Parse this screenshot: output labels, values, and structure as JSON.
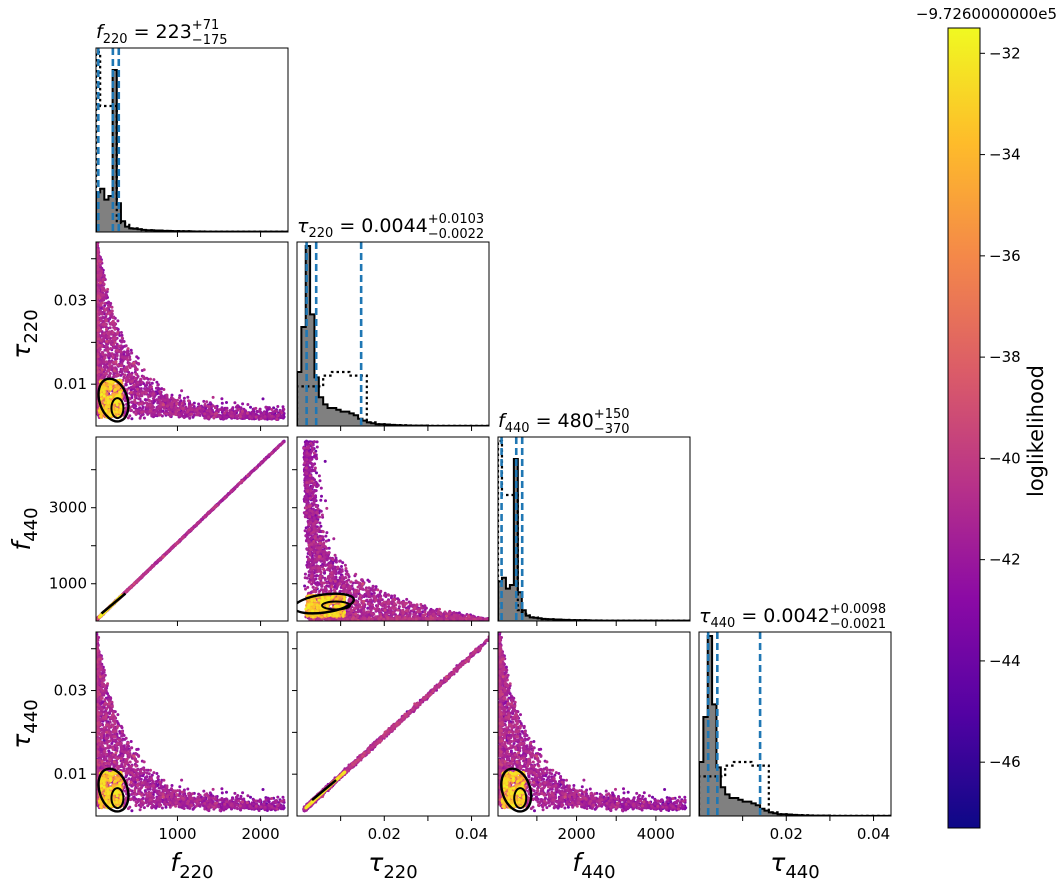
{
  "chart_data": {
    "type": "scatter",
    "title": "",
    "parameters": [
      "f_220",
      "tau_220",
      "f_440",
      "tau_440"
    ],
    "axis_labels": {
      "f_220": {
        "base": "f",
        "sub": "220"
      },
      "tau_220": {
        "base": "τ",
        "sub": "220"
      },
      "f_440": {
        "base": "f",
        "sub": "440"
      },
      "tau_440": {
        "base": "τ",
        "sub": "440"
      }
    },
    "ranges": {
      "f_220": [
        20,
        2330
      ],
      "tau_220": [
        0.0,
        0.044
      ],
      "f_440": [
        20,
        4860
      ],
      "tau_440": [
        0.0,
        0.044
      ]
    },
    "ticks": {
      "f_220": [
        {
          "v": 1000,
          "label": "1000"
        },
        {
          "v": 2000,
          "label": "2000"
        }
      ],
      "tau_220": [
        {
          "v": 0.01,
          "label": "0.01"
        },
        {
          "v": 0.02,
          "label": "0.02"
        },
        {
          "v": 0.03,
          "label": "0.03"
        },
        {
          "v": 0.04,
          "label": "0.04"
        }
      ],
      "f_440": [
        {
          "v": 1000,
          "label": "1000"
        },
        {
          "v": 2000,
          "label": "2000"
        },
        {
          "v": 3000,
          "label": "3000"
        },
        {
          "v": 4000,
          "label": "4000"
        }
      ],
      "tau_440": [
        {
          "v": 0.01,
          "label": "0.01"
        },
        {
          "v": 0.02,
          "label": "0.02"
        },
        {
          "v": 0.03,
          "label": "0.03"
        },
        {
          "v": 0.04,
          "label": "0.04"
        }
      ]
    },
    "bottom_ticks": {
      "f_220": [
        "1000",
        "2000"
      ],
      "tau_220": [
        "0.02",
        "0.04"
      ],
      "f_440": [
        "2000",
        "4000"
      ],
      "tau_440": [
        "0.02",
        "0.04"
      ]
    },
    "left_ticks": {
      "tau_220": [
        "0.01",
        "0.03"
      ],
      "f_440": [
        "1000",
        "3000"
      ],
      "tau_440": [
        "0.01",
        "0.03"
      ]
    },
    "titles": {
      "f_220": {
        "median": "223",
        "plus": "+71",
        "minus": "−175"
      },
      "tau_220": {
        "median": "0.0044",
        "plus": "+0.0103",
        "minus": "−0.0022"
      },
      "f_440": {
        "median": "480",
        "plus": "+150",
        "minus": "−370"
      },
      "tau_440": {
        "median": "0.0042",
        "plus": "+0.0098",
        "minus": "−0.0021"
      }
    },
    "quantiles": {
      "f_220": [
        48,
        223,
        294
      ],
      "tau_220": [
        0.0022,
        0.0044,
        0.0147
      ],
      "f_440": [
        110,
        480,
        630
      ],
      "tau_440": [
        0.0021,
        0.0042,
        0.014
      ]
    },
    "histograms": {
      "f_220": {
        "edges_from": 20,
        "bin_width": 50,
        "posterior": [
          0.22,
          0.24,
          0.18,
          0.2,
          0.9,
          0.16,
          0.06,
          0.03,
          0.02,
          0.018,
          0.015,
          0.012,
          0.01,
          0.01,
          0.008,
          0.008,
          0.006,
          0.006,
          0.005,
          0.005,
          0.004,
          0.004,
          0.004,
          0.003,
          0.003,
          0.003,
          0.002,
          0.002,
          0.002,
          0.002,
          0.002,
          0.002,
          0.002,
          0.002,
          0.002,
          0.002,
          0.002,
          0.002,
          0.002,
          0.002,
          0.002,
          0.002,
          0.002,
          0.002,
          0.002,
          0.002
        ],
        "prior": [
          1.0,
          0.7,
          0.7,
          0.7,
          0.7,
          0.06,
          0.05,
          0.04,
          0.02,
          0.02,
          0.015,
          0.01,
          0.01,
          0.01,
          0.008,
          0.008,
          0.006,
          0.006,
          0.005,
          0.005,
          0.004,
          0.004,
          0.004,
          0.003,
          0.003,
          0.003,
          0.002,
          0.002,
          0.002,
          0.002,
          0.002,
          0.002,
          0.002,
          0.002,
          0.002,
          0.002,
          0.002,
          0.002,
          0.002,
          0.002,
          0.002,
          0.002,
          0.002,
          0.002,
          0.002,
          0.002
        ]
      },
      "tau_220": {
        "edges_from": 0.0,
        "bin_width": 0.001,
        "posterior": [
          0.3,
          0.55,
          1.0,
          0.62,
          0.27,
          0.16,
          0.12,
          0.1,
          0.1,
          0.09,
          0.08,
          0.08,
          0.07,
          0.06,
          0.04,
          0.03,
          0.02,
          0.015,
          0.01,
          0.01,
          0.008,
          0.006,
          0.005,
          0.004,
          0.003,
          0.003,
          0.002,
          0.002,
          0.002,
          0.002,
          0.001,
          0.001,
          0.001,
          0.001,
          0.001,
          0.001,
          0.001,
          0.001,
          0.001,
          0.001,
          0.001,
          0.001,
          0.001,
          0.001
        ],
        "prior": [
          0.22,
          0.22,
          0.22,
          0.22,
          0.22,
          0.22,
          0.28,
          0.28,
          0.3,
          0.3,
          0.3,
          0.3,
          0.28,
          0.28,
          0.28,
          0.28,
          0.02,
          0.02,
          0.01,
          0.01,
          0.01,
          0.008,
          0.006,
          0.005,
          0.004,
          0.003,
          0.003,
          0.002,
          0.002,
          0.002,
          0.001,
          0.001,
          0.001,
          0.001,
          0.001,
          0.001,
          0.001,
          0.001,
          0.001,
          0.001,
          0.001,
          0.001,
          0.001,
          0.001
        ]
      },
      "f_440": {
        "edges_from": 20,
        "bin_width": 100,
        "posterior": [
          0.22,
          0.24,
          0.18,
          0.2,
          0.9,
          0.16,
          0.06,
          0.03,
          0.02,
          0.018,
          0.015,
          0.012,
          0.01,
          0.01,
          0.008,
          0.008,
          0.006,
          0.006,
          0.005,
          0.005,
          0.004,
          0.004,
          0.004,
          0.003,
          0.003,
          0.003,
          0.002,
          0.002,
          0.002,
          0.002,
          0.002,
          0.002,
          0.002,
          0.002,
          0.002,
          0.002,
          0.002,
          0.002,
          0.002,
          0.002,
          0.002,
          0.002,
          0.002,
          0.002,
          0.002,
          0.002,
          0.002,
          0.002
        ],
        "prior": [
          1.0,
          0.7,
          0.7,
          0.7,
          0.7,
          0.06,
          0.05,
          0.04,
          0.02,
          0.02,
          0.015,
          0.01,
          0.01,
          0.01,
          0.008,
          0.008,
          0.006,
          0.006,
          0.005,
          0.005,
          0.004,
          0.004,
          0.004,
          0.003,
          0.003,
          0.003,
          0.002,
          0.002,
          0.002,
          0.002,
          0.002,
          0.002,
          0.002,
          0.002,
          0.002,
          0.002,
          0.002,
          0.002,
          0.002,
          0.002,
          0.002,
          0.002,
          0.002,
          0.002,
          0.002,
          0.002,
          0.002,
          0.002
        ]
      },
      "tau_440": {
        "edges_from": 0.0,
        "bin_width": 0.001,
        "posterior": [
          0.3,
          0.55,
          1.0,
          0.62,
          0.27,
          0.16,
          0.12,
          0.1,
          0.1,
          0.09,
          0.08,
          0.08,
          0.07,
          0.06,
          0.04,
          0.03,
          0.02,
          0.015,
          0.01,
          0.01,
          0.008,
          0.006,
          0.005,
          0.004,
          0.003,
          0.003,
          0.002,
          0.002,
          0.002,
          0.002,
          0.001,
          0.001,
          0.001,
          0.001,
          0.001,
          0.001,
          0.001,
          0.001,
          0.001,
          0.001,
          0.001,
          0.001,
          0.001,
          0.001
        ],
        "prior": [
          0.22,
          0.22,
          0.22,
          0.22,
          0.22,
          0.22,
          0.28,
          0.28,
          0.3,
          0.3,
          0.3,
          0.3,
          0.28,
          0.28,
          0.28,
          0.28,
          0.02,
          0.02,
          0.01,
          0.01,
          0.01,
          0.008,
          0.006,
          0.005,
          0.004,
          0.003,
          0.003,
          0.002,
          0.002,
          0.002,
          0.001,
          0.001,
          0.001,
          0.001,
          0.001,
          0.001,
          0.001,
          0.001,
          0.001,
          0.001,
          0.001,
          0.001,
          0.001,
          0.001
        ]
      }
    },
    "colorbar": {
      "label": "loglikelihood",
      "offset": "−9.7260000000e5",
      "range": [
        -47.3,
        -31.5
      ],
      "ticks": [
        {
          "v": -32,
          "label": "−32"
        },
        {
          "v": -34,
          "label": "−34"
        },
        {
          "v": -36,
          "label": "−36"
        },
        {
          "v": -38,
          "label": "−38"
        },
        {
          "v": -40,
          "label": "−40"
        },
        {
          "v": -42,
          "label": "−42"
        },
        {
          "v": -44,
          "label": "−44"
        },
        {
          "v": -46,
          "label": "−46"
        }
      ],
      "colormap": "plasma"
    },
    "grid": false,
    "legend": "none"
  },
  "colors": {
    "quantile_line": "#1f77b4",
    "posterior_fill": "#808080",
    "posterior_edge": "#000000",
    "prior_line": "#000000",
    "plasma": [
      "#0d0887",
      "#5302a3",
      "#8b0aa5",
      "#b83289",
      "#db5c68",
      "#f48849",
      "#febc2a",
      "#f0f921"
    ]
  }
}
